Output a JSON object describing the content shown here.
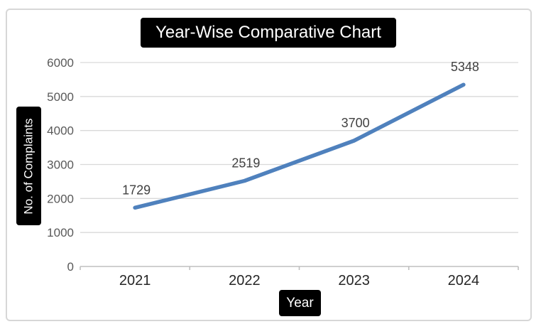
{
  "chart": {
    "title": "Year-Wise Comparative Chart",
    "x_axis_title": "Year",
    "y_axis_title": "No. of Complaints"
  },
  "chart_data": {
    "type": "line",
    "title": "Year-Wise Comparative Chart",
    "xlabel": "Year",
    "ylabel": "No. of Complaints",
    "categories": [
      "2021",
      "2022",
      "2023",
      "2024"
    ],
    "values": [
      1729,
      2519,
      3700,
      5348
    ],
    "data_labels": [
      "1729",
      "2519",
      "3700",
      "5348"
    ],
    "ylim": [
      0,
      6000
    ],
    "ytick_step": 1000,
    "ytick_labels": [
      "0",
      "1000",
      "2000",
      "3000",
      "4000",
      "5000",
      "6000"
    ],
    "grid": true,
    "legend": "none",
    "colors": {
      "line": "#4f81bd",
      "gridline": "#d9d9d9",
      "axis_line": "#bfbfbf",
      "y_tick_label": "#595959",
      "x_tick_label": "#262626",
      "data_label": "#404040",
      "title_bg": "#000000",
      "title_text": "#ffffff"
    }
  }
}
